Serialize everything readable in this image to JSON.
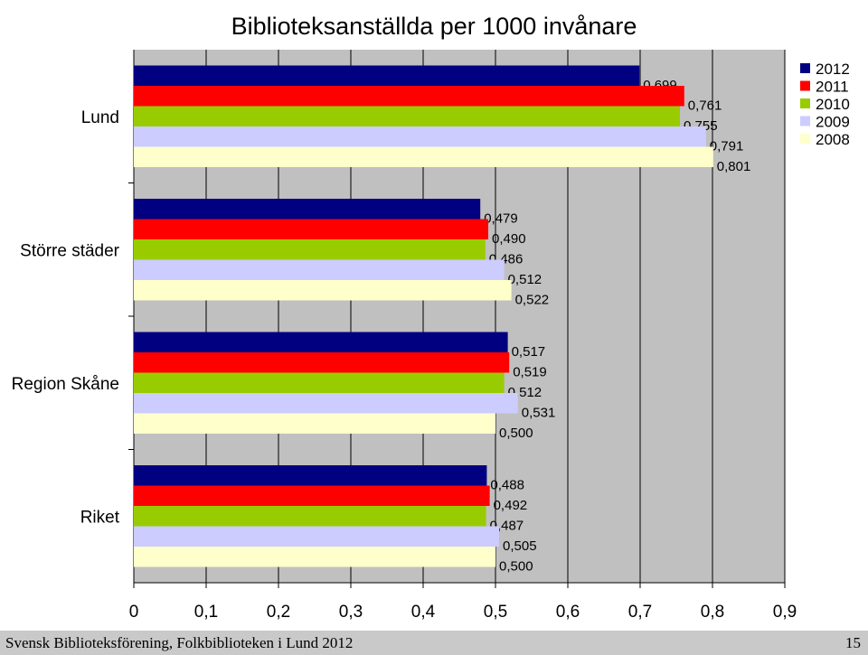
{
  "chart_data": {
    "type": "bar",
    "orientation": "horizontal",
    "title": "Biblioteksanställda per 1000 invånare",
    "categories": [
      "Lund",
      "Större städer",
      "Region Skåne",
      "Riket"
    ],
    "series": [
      {
        "name": "2012",
        "color": "#000080",
        "values": [
          0.699,
          0.479,
          0.517,
          0.488
        ],
        "labels": [
          "0,699",
          "0,479",
          "0,517",
          "0,488"
        ]
      },
      {
        "name": "2011",
        "color": "#ff0000",
        "values": [
          0.761,
          0.49,
          0.519,
          0.492
        ],
        "labels": [
          "0,761",
          "0,490",
          "0,519",
          "0,492"
        ]
      },
      {
        "name": "2010",
        "color": "#99cc00",
        "values": [
          0.755,
          0.486,
          0.512,
          0.487
        ],
        "labels": [
          "0,755",
          "0,486",
          "0,512",
          "0,487"
        ]
      },
      {
        "name": "2009",
        "color": "#ccccff",
        "values": [
          0.791,
          0.512,
          0.531,
          0.505
        ],
        "labels": [
          "0,791",
          "0,512",
          "0,531",
          "0,505"
        ]
      },
      {
        "name": "2008",
        "color": "#ffffcc",
        "values": [
          0.801,
          0.522,
          0.5,
          0.5
        ],
        "labels": [
          "0,801",
          "0,522",
          "0,500",
          "0,500"
        ]
      }
    ],
    "x_ticks": [
      0,
      0.1,
      0.2,
      0.3,
      0.4,
      0.5,
      0.6,
      0.7,
      0.8,
      0.9
    ],
    "x_tick_labels": [
      "0",
      "0,1",
      "0,2",
      "0,3",
      "0,4",
      "0,5",
      "0,6",
      "0,7",
      "0,8",
      "0,9"
    ],
    "xlim": [
      0,
      0.9
    ],
    "grid": true,
    "plot_background": "#c0c0c0",
    "legend_position": "top-right"
  },
  "footer": {
    "left": "Svensk Biblioteksförening, Folkbiblioteken i Lund 2012",
    "right": "15"
  }
}
